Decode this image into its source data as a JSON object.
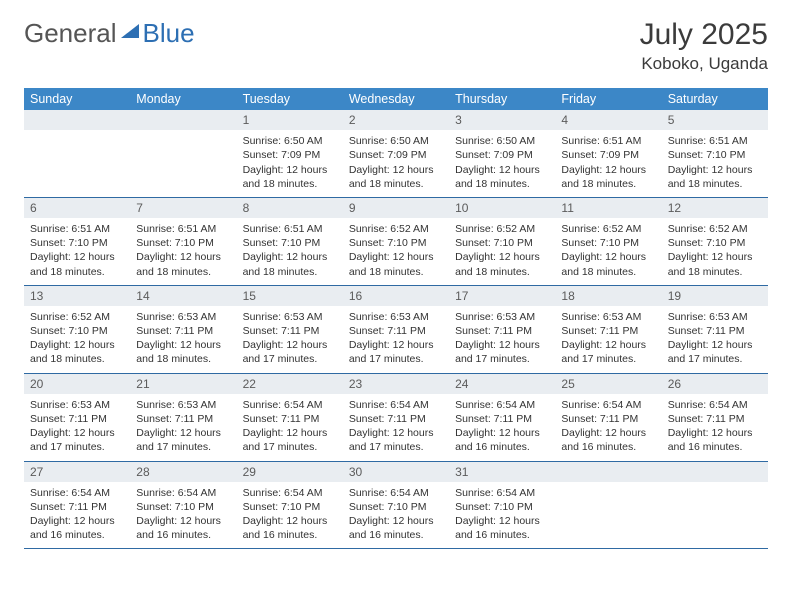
{
  "brand": {
    "part1": "General",
    "part2": "Blue"
  },
  "title": "July 2025",
  "location": "Koboko, Uganda",
  "colors": {
    "header_bg": "#3c87c7",
    "header_text": "#ffffff",
    "daynum_bg": "#e9edf1",
    "row_divider": "#2f6aa3",
    "body_text": "#333333",
    "brand_blue": "#2d6fb3"
  },
  "weekdays": [
    "Sunday",
    "Monday",
    "Tuesday",
    "Wednesday",
    "Thursday",
    "Friday",
    "Saturday"
  ],
  "weeks": [
    [
      {
        "day": "",
        "sunrise": "",
        "sunset": "",
        "daylight": ""
      },
      {
        "day": "",
        "sunrise": "",
        "sunset": "",
        "daylight": ""
      },
      {
        "day": "1",
        "sunrise": "Sunrise: 6:50 AM",
        "sunset": "Sunset: 7:09 PM",
        "daylight": "Daylight: 12 hours and 18 minutes."
      },
      {
        "day": "2",
        "sunrise": "Sunrise: 6:50 AM",
        "sunset": "Sunset: 7:09 PM",
        "daylight": "Daylight: 12 hours and 18 minutes."
      },
      {
        "day": "3",
        "sunrise": "Sunrise: 6:50 AM",
        "sunset": "Sunset: 7:09 PM",
        "daylight": "Daylight: 12 hours and 18 minutes."
      },
      {
        "day": "4",
        "sunrise": "Sunrise: 6:51 AM",
        "sunset": "Sunset: 7:09 PM",
        "daylight": "Daylight: 12 hours and 18 minutes."
      },
      {
        "day": "5",
        "sunrise": "Sunrise: 6:51 AM",
        "sunset": "Sunset: 7:10 PM",
        "daylight": "Daylight: 12 hours and 18 minutes."
      }
    ],
    [
      {
        "day": "6",
        "sunrise": "Sunrise: 6:51 AM",
        "sunset": "Sunset: 7:10 PM",
        "daylight": "Daylight: 12 hours and 18 minutes."
      },
      {
        "day": "7",
        "sunrise": "Sunrise: 6:51 AM",
        "sunset": "Sunset: 7:10 PM",
        "daylight": "Daylight: 12 hours and 18 minutes."
      },
      {
        "day": "8",
        "sunrise": "Sunrise: 6:51 AM",
        "sunset": "Sunset: 7:10 PM",
        "daylight": "Daylight: 12 hours and 18 minutes."
      },
      {
        "day": "9",
        "sunrise": "Sunrise: 6:52 AM",
        "sunset": "Sunset: 7:10 PM",
        "daylight": "Daylight: 12 hours and 18 minutes."
      },
      {
        "day": "10",
        "sunrise": "Sunrise: 6:52 AM",
        "sunset": "Sunset: 7:10 PM",
        "daylight": "Daylight: 12 hours and 18 minutes."
      },
      {
        "day": "11",
        "sunrise": "Sunrise: 6:52 AM",
        "sunset": "Sunset: 7:10 PM",
        "daylight": "Daylight: 12 hours and 18 minutes."
      },
      {
        "day": "12",
        "sunrise": "Sunrise: 6:52 AM",
        "sunset": "Sunset: 7:10 PM",
        "daylight": "Daylight: 12 hours and 18 minutes."
      }
    ],
    [
      {
        "day": "13",
        "sunrise": "Sunrise: 6:52 AM",
        "sunset": "Sunset: 7:10 PM",
        "daylight": "Daylight: 12 hours and 18 minutes."
      },
      {
        "day": "14",
        "sunrise": "Sunrise: 6:53 AM",
        "sunset": "Sunset: 7:11 PM",
        "daylight": "Daylight: 12 hours and 18 minutes."
      },
      {
        "day": "15",
        "sunrise": "Sunrise: 6:53 AM",
        "sunset": "Sunset: 7:11 PM",
        "daylight": "Daylight: 12 hours and 17 minutes."
      },
      {
        "day": "16",
        "sunrise": "Sunrise: 6:53 AM",
        "sunset": "Sunset: 7:11 PM",
        "daylight": "Daylight: 12 hours and 17 minutes."
      },
      {
        "day": "17",
        "sunrise": "Sunrise: 6:53 AM",
        "sunset": "Sunset: 7:11 PM",
        "daylight": "Daylight: 12 hours and 17 minutes."
      },
      {
        "day": "18",
        "sunrise": "Sunrise: 6:53 AM",
        "sunset": "Sunset: 7:11 PM",
        "daylight": "Daylight: 12 hours and 17 minutes."
      },
      {
        "day": "19",
        "sunrise": "Sunrise: 6:53 AM",
        "sunset": "Sunset: 7:11 PM",
        "daylight": "Daylight: 12 hours and 17 minutes."
      }
    ],
    [
      {
        "day": "20",
        "sunrise": "Sunrise: 6:53 AM",
        "sunset": "Sunset: 7:11 PM",
        "daylight": "Daylight: 12 hours and 17 minutes."
      },
      {
        "day": "21",
        "sunrise": "Sunrise: 6:53 AM",
        "sunset": "Sunset: 7:11 PM",
        "daylight": "Daylight: 12 hours and 17 minutes."
      },
      {
        "day": "22",
        "sunrise": "Sunrise: 6:54 AM",
        "sunset": "Sunset: 7:11 PM",
        "daylight": "Daylight: 12 hours and 17 minutes."
      },
      {
        "day": "23",
        "sunrise": "Sunrise: 6:54 AM",
        "sunset": "Sunset: 7:11 PM",
        "daylight": "Daylight: 12 hours and 17 minutes."
      },
      {
        "day": "24",
        "sunrise": "Sunrise: 6:54 AM",
        "sunset": "Sunset: 7:11 PM",
        "daylight": "Daylight: 12 hours and 16 minutes."
      },
      {
        "day": "25",
        "sunrise": "Sunrise: 6:54 AM",
        "sunset": "Sunset: 7:11 PM",
        "daylight": "Daylight: 12 hours and 16 minutes."
      },
      {
        "day": "26",
        "sunrise": "Sunrise: 6:54 AM",
        "sunset": "Sunset: 7:11 PM",
        "daylight": "Daylight: 12 hours and 16 minutes."
      }
    ],
    [
      {
        "day": "27",
        "sunrise": "Sunrise: 6:54 AM",
        "sunset": "Sunset: 7:11 PM",
        "daylight": "Daylight: 12 hours and 16 minutes."
      },
      {
        "day": "28",
        "sunrise": "Sunrise: 6:54 AM",
        "sunset": "Sunset: 7:10 PM",
        "daylight": "Daylight: 12 hours and 16 minutes."
      },
      {
        "day": "29",
        "sunrise": "Sunrise: 6:54 AM",
        "sunset": "Sunset: 7:10 PM",
        "daylight": "Daylight: 12 hours and 16 minutes."
      },
      {
        "day": "30",
        "sunrise": "Sunrise: 6:54 AM",
        "sunset": "Sunset: 7:10 PM",
        "daylight": "Daylight: 12 hours and 16 minutes."
      },
      {
        "day": "31",
        "sunrise": "Sunrise: 6:54 AM",
        "sunset": "Sunset: 7:10 PM",
        "daylight": "Daylight: 12 hours and 16 minutes."
      },
      {
        "day": "",
        "sunrise": "",
        "sunset": "",
        "daylight": ""
      },
      {
        "day": "",
        "sunrise": "",
        "sunset": "",
        "daylight": ""
      }
    ]
  ]
}
